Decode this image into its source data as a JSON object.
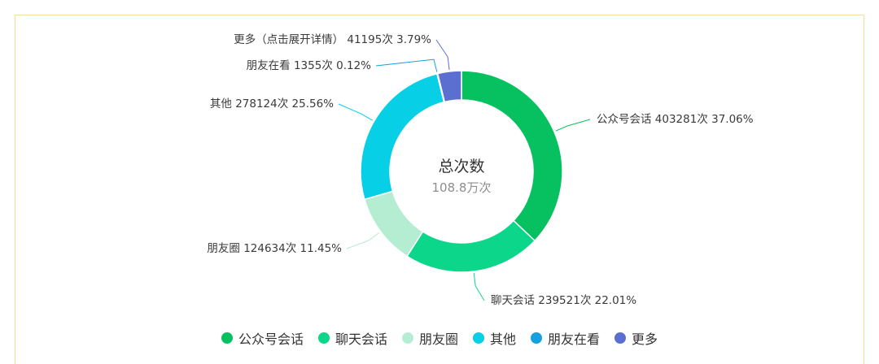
{
  "chart_data": {
    "type": "pie",
    "subtype": "donut",
    "center": {
      "title": "总次数",
      "value": "108.8万次"
    },
    "slices": [
      {
        "name": "公众号会话",
        "count": 403281,
        "percent": 37.06,
        "label": "公众号会话 403281次 37.06%",
        "color": "#07c160",
        "label_side": "right"
      },
      {
        "name": "聊天会话",
        "count": 239521,
        "percent": 22.01,
        "label": "聊天会话 239521次 22.01%",
        "color": "#0bd68a",
        "label_side": "right"
      },
      {
        "name": "朋友圈",
        "count": 124634,
        "percent": 11.45,
        "label": "朋友圈 124634次 11.45%",
        "color": "#b5edd3",
        "label_side": "left"
      },
      {
        "name": "其他",
        "count": 278124,
        "percent": 25.56,
        "label": "其他 278124次 25.56%",
        "color": "#06cfe6",
        "label_side": "left"
      },
      {
        "name": "朋友在看",
        "count": 1355,
        "percent": 0.12,
        "label": "朋友在看 1355次 0.12%",
        "color": "#15a0e0",
        "label_side": "left"
      },
      {
        "name": "更多",
        "count": 41195,
        "percent": 3.79,
        "label": "更多（点击展开详情） 41195次 3.79%",
        "color": "#5b6fd1",
        "label_side": "left"
      }
    ],
    "legend": {
      "position": "bottom",
      "items": [
        "公众号会话",
        "聊天会话",
        "朋友圈",
        "其他",
        "朋友在看",
        "更多"
      ]
    }
  }
}
